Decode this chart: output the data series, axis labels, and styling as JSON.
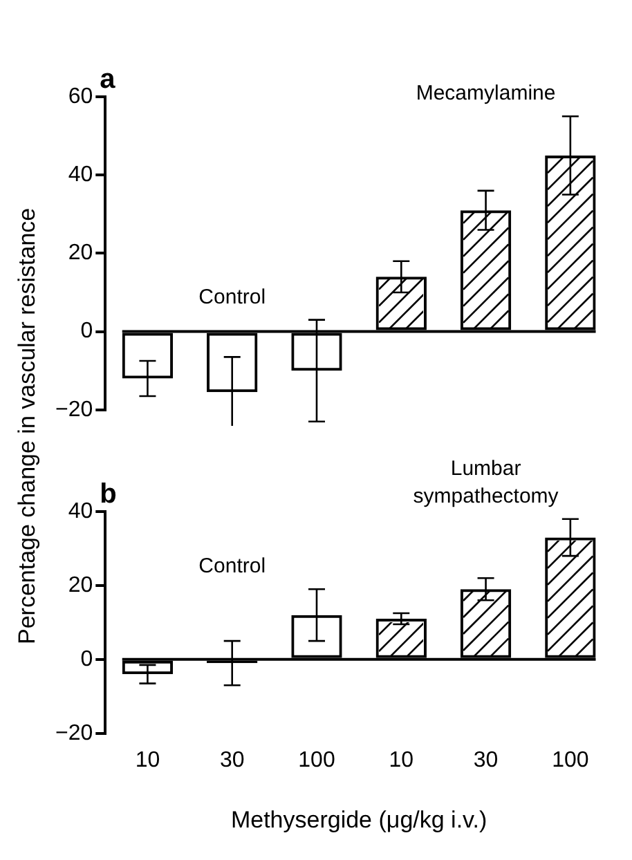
{
  "chart_data": [
    {
      "type": "bar",
      "title": "a",
      "ylabel": "Percentage change in vascular resistance",
      "categories": [
        "10",
        "30",
        "100",
        "10",
        "30",
        "100"
      ],
      "tick_labels": "y",
      "ylim": [
        -20,
        60
      ],
      "yticks": [
        -20,
        0,
        20,
        40,
        60
      ],
      "grid": false,
      "ref_lines": [
        {
          "axis": "y",
          "value": 0
        }
      ],
      "series": [
        {
          "name": "Control",
          "color": "#000000",
          "values": [
            -12,
            -15.5,
            -10,
            null,
            null,
            null
          ],
          "errors": [
            4.5,
            9,
            13,
            null,
            null,
            null
          ]
        },
        {
          "name": "Mecamylamine",
          "color": "#000000",
          "values": [
            null,
            null,
            null,
            14,
            31,
            45
          ],
          "errors": [
            null,
            null,
            null,
            4,
            5,
            10
          ]
        }
      ]
    },
    {
      "type": "bar",
      "title": "b",
      "xlabel": "Methysergide (μg/kg i.v.)",
      "categories": [
        "10",
        "30",
        "100",
        "10",
        "30",
        "100"
      ],
      "ylim": [
        -20,
        40
      ],
      "yticks": [
        -20,
        0,
        20,
        40
      ],
      "grid": false,
      "ref_lines": [
        {
          "axis": "y",
          "value": 0
        }
      ],
      "series": [
        {
          "name": "Control",
          "color": "#000000",
          "values": [
            -4,
            -1,
            12,
            null,
            null,
            null
          ],
          "errors": [
            2.5,
            6,
            7,
            null,
            null,
            null
          ]
        },
        {
          "name": "Lumbar sympathectomy",
          "color": "#000000",
          "values": [
            null,
            null,
            null,
            11,
            19,
            33
          ],
          "errors": [
            null,
            null,
            null,
            1.5,
            3,
            5
          ]
        }
      ]
    }
  ]
}
